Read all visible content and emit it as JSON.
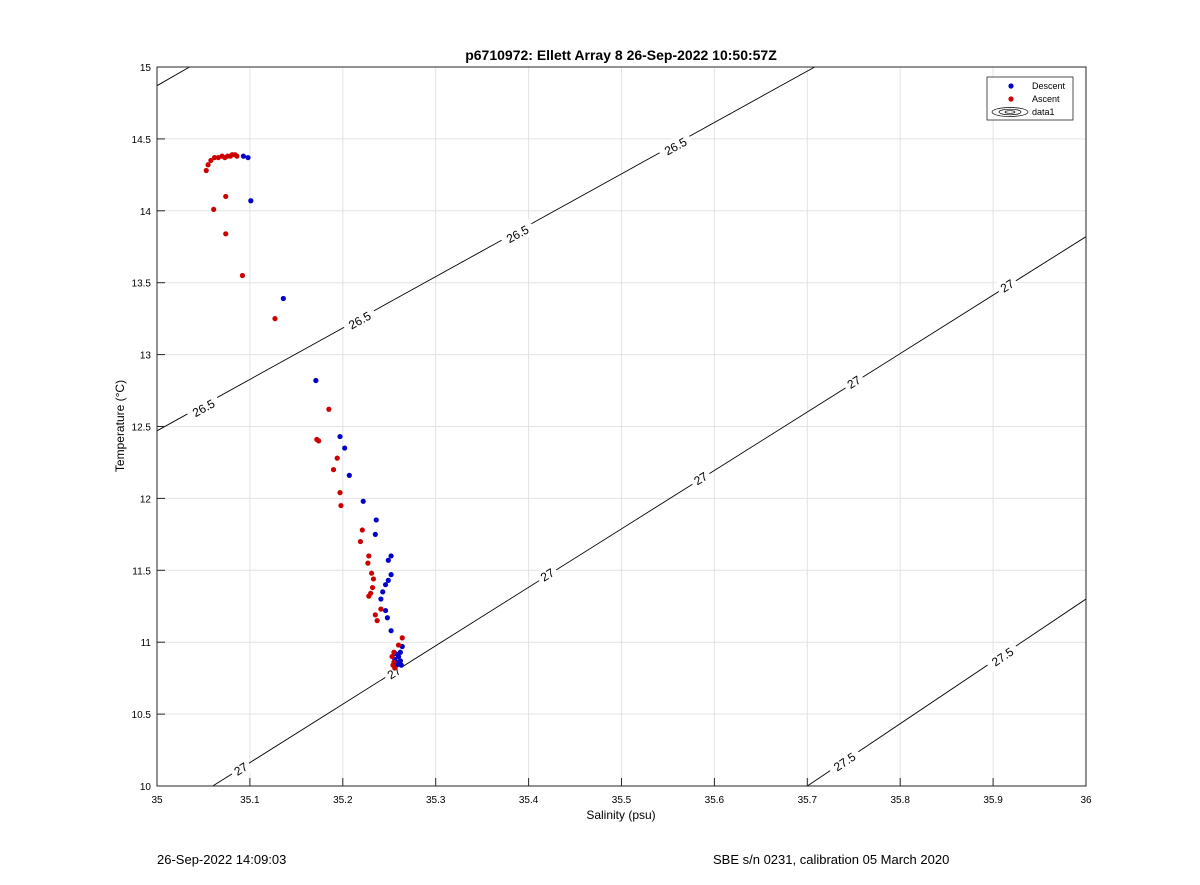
{
  "footer": {
    "left": "26-Sep-2022 14:09:03",
    "right": "SBE s/n 0231, calibration 05 March 2020"
  },
  "chart_data": {
    "type": "scatter",
    "title": "p6710972: Ellett Array 8 26-Sep-2022 10:50:57Z",
    "xlabel": "Salinity (psu)",
    "ylabel": "Temperature (°C)",
    "xlim": [
      35,
      36
    ],
    "ylim": [
      10,
      15
    ],
    "xticks": [
      35,
      35.1,
      35.2,
      35.3,
      35.4,
      35.5,
      35.6,
      35.7,
      35.8,
      35.9,
      36
    ],
    "xtick_labels": [
      "35",
      "35.1",
      "35.2",
      "35.3",
      "35.4",
      "35.5",
      "35.6",
      "35.7",
      "35.8",
      "35.9",
      "36"
    ],
    "yticks": [
      10,
      10.5,
      11,
      11.5,
      12,
      12.5,
      13,
      13.5,
      14,
      14.5,
      15
    ],
    "ytick_labels": [
      "10",
      "10.5",
      "11",
      "11.5",
      "12",
      "12.5",
      "13",
      "13.5",
      "14",
      "14.5",
      "15"
    ],
    "grid": true,
    "legend_position": "top-right",
    "legend": [
      "Descent",
      "Ascent",
      "data1"
    ],
    "colors": {
      "descent": "#0000c8",
      "ascent": "#cc0000",
      "contour": "#000000",
      "grid": "#e3e3e3"
    },
    "series": [
      {
        "name": "Descent",
        "points": [
          [
            35.093,
            14.38
          ],
          [
            35.098,
            14.37
          ],
          [
            35.101,
            14.07
          ],
          [
            35.136,
            13.39
          ],
          [
            35.171,
            12.82
          ],
          [
            35.197,
            12.43
          ],
          [
            35.202,
            12.35
          ],
          [
            35.207,
            12.16
          ],
          [
            35.222,
            11.98
          ],
          [
            35.236,
            11.85
          ],
          [
            35.235,
            11.75
          ],
          [
            35.252,
            11.6
          ],
          [
            35.249,
            11.57
          ],
          [
            35.252,
            11.47
          ],
          [
            35.249,
            11.43
          ],
          [
            35.246,
            11.4
          ],
          [
            35.243,
            11.35
          ],
          [
            35.241,
            11.3
          ],
          [
            35.246,
            11.22
          ],
          [
            35.248,
            11.17
          ],
          [
            35.252,
            11.08
          ],
          [
            35.264,
            10.97
          ],
          [
            35.262,
            10.93
          ],
          [
            35.26,
            10.9
          ],
          [
            35.262,
            10.87
          ],
          [
            35.259,
            10.86
          ],
          [
            35.263,
            10.84
          ],
          [
            35.258,
            10.84
          ],
          [
            35.256,
            10.88
          ],
          [
            35.257,
            10.92
          ]
        ]
      },
      {
        "name": "Ascent",
        "points": [
          [
            35.053,
            14.28
          ],
          [
            35.055,
            14.32
          ],
          [
            35.058,
            14.35
          ],
          [
            35.062,
            14.37
          ],
          [
            35.066,
            14.37
          ],
          [
            35.07,
            14.38
          ],
          [
            35.073,
            14.37
          ],
          [
            35.076,
            14.38
          ],
          [
            35.079,
            14.38
          ],
          [
            35.081,
            14.39
          ],
          [
            35.084,
            14.39
          ],
          [
            35.086,
            14.38
          ],
          [
            35.074,
            14.1
          ],
          [
            35.061,
            14.01
          ],
          [
            35.074,
            13.84
          ],
          [
            35.092,
            13.55
          ],
          [
            35.127,
            13.25
          ],
          [
            35.185,
            12.62
          ],
          [
            35.174,
            12.4
          ],
          [
            35.172,
            12.41
          ],
          [
            35.194,
            12.28
          ],
          [
            35.19,
            12.2
          ],
          [
            35.197,
            12.04
          ],
          [
            35.198,
            11.95
          ],
          [
            35.221,
            11.78
          ],
          [
            35.219,
            11.7
          ],
          [
            35.228,
            11.6
          ],
          [
            35.227,
            11.55
          ],
          [
            35.231,
            11.48
          ],
          [
            35.233,
            11.44
          ],
          [
            35.232,
            11.38
          ],
          [
            35.23,
            11.34
          ],
          [
            35.228,
            11.32
          ],
          [
            35.235,
            11.19
          ],
          [
            35.237,
            11.15
          ],
          [
            35.241,
            11.23
          ],
          [
            35.264,
            11.03
          ],
          [
            35.26,
            10.98
          ],
          [
            35.255,
            10.93
          ],
          [
            35.253,
            10.9
          ],
          [
            35.255,
            10.86
          ],
          [
            35.254,
            10.84
          ],
          [
            35.256,
            10.82
          ]
        ]
      }
    ],
    "contours": [
      {
        "label": "26.5",
        "lines": [
          {
            "from": [
              35.0,
              12.47
            ],
            "to": [
              35.708,
              15.0
            ]
          },
          {
            "from": [
              35.0,
              14.87
            ],
            "to": [
              35.035,
              15.0
            ]
          }
        ],
        "labels_at": [
          [
            35.05,
            12.63
          ],
          [
            35.218,
            13.24
          ],
          [
            35.388,
            13.84
          ],
          [
            35.558,
            14.45
          ]
        ]
      },
      {
        "label": "27",
        "lines": [
          {
            "from": [
              35.06,
              10.0
            ],
            "to": [
              36.0,
              13.82
            ]
          }
        ],
        "labels_at": [
          [
            35.09,
            10.12
          ],
          [
            35.255,
            10.79
          ],
          [
            35.42,
            11.47
          ],
          [
            35.585,
            12.14
          ],
          [
            35.75,
            12.81
          ],
          [
            35.915,
            13.48
          ]
        ]
      },
      {
        "label": "27.5",
        "lines": [
          {
            "from": [
              35.7,
              10.0
            ],
            "to": [
              36.0,
              11.3
            ]
          }
        ],
        "labels_at": [
          [
            35.74,
            10.17
          ],
          [
            35.91,
            10.9
          ]
        ]
      }
    ]
  }
}
